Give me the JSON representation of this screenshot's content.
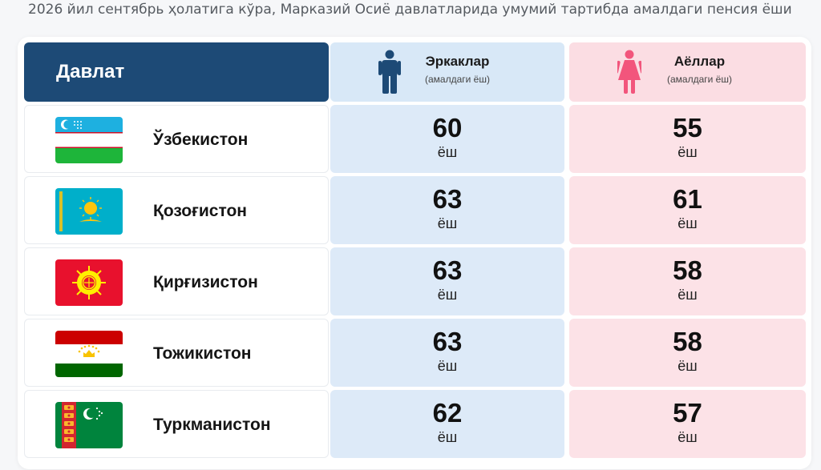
{
  "caption": "2026 йил сентябрь ҳолатига кўра, Марказий Осиё давлатларида умумий тартибда амалдаги пенсия ёши",
  "header": {
    "country": "Давлат",
    "men": {
      "title": "Эркаклар",
      "sub": "(амалдаги ёш)",
      "icon": "man-icon"
    },
    "women": {
      "title": "Аёллар",
      "sub": "(амалдаги ёш)",
      "icon": "woman-icon"
    }
  },
  "unit": "ёш",
  "colors": {
    "header_bg": "#1d4a76",
    "men_bg": "#ddeaf8",
    "women_bg": "#fce2e7",
    "men_icon": "#1d4a76",
    "women_icon": "#f2557c"
  },
  "rows": [
    {
      "country": "Ўзбекистон",
      "flag": "uzbekistan-flag",
      "men": "60",
      "women": "55"
    },
    {
      "country": "Қозоғистон",
      "flag": "kazakhstan-flag",
      "men": "63",
      "women": "61"
    },
    {
      "country": "Қирғизистон",
      "flag": "kyrgyzstan-flag",
      "men": "63",
      "women": "58"
    },
    {
      "country": "Тожикистон",
      "flag": "tajikistan-flag",
      "men": "63",
      "women": "58"
    },
    {
      "country": "Туркманистон",
      "flag": "turkmenistan-flag",
      "men": "62",
      "women": "57"
    }
  ]
}
